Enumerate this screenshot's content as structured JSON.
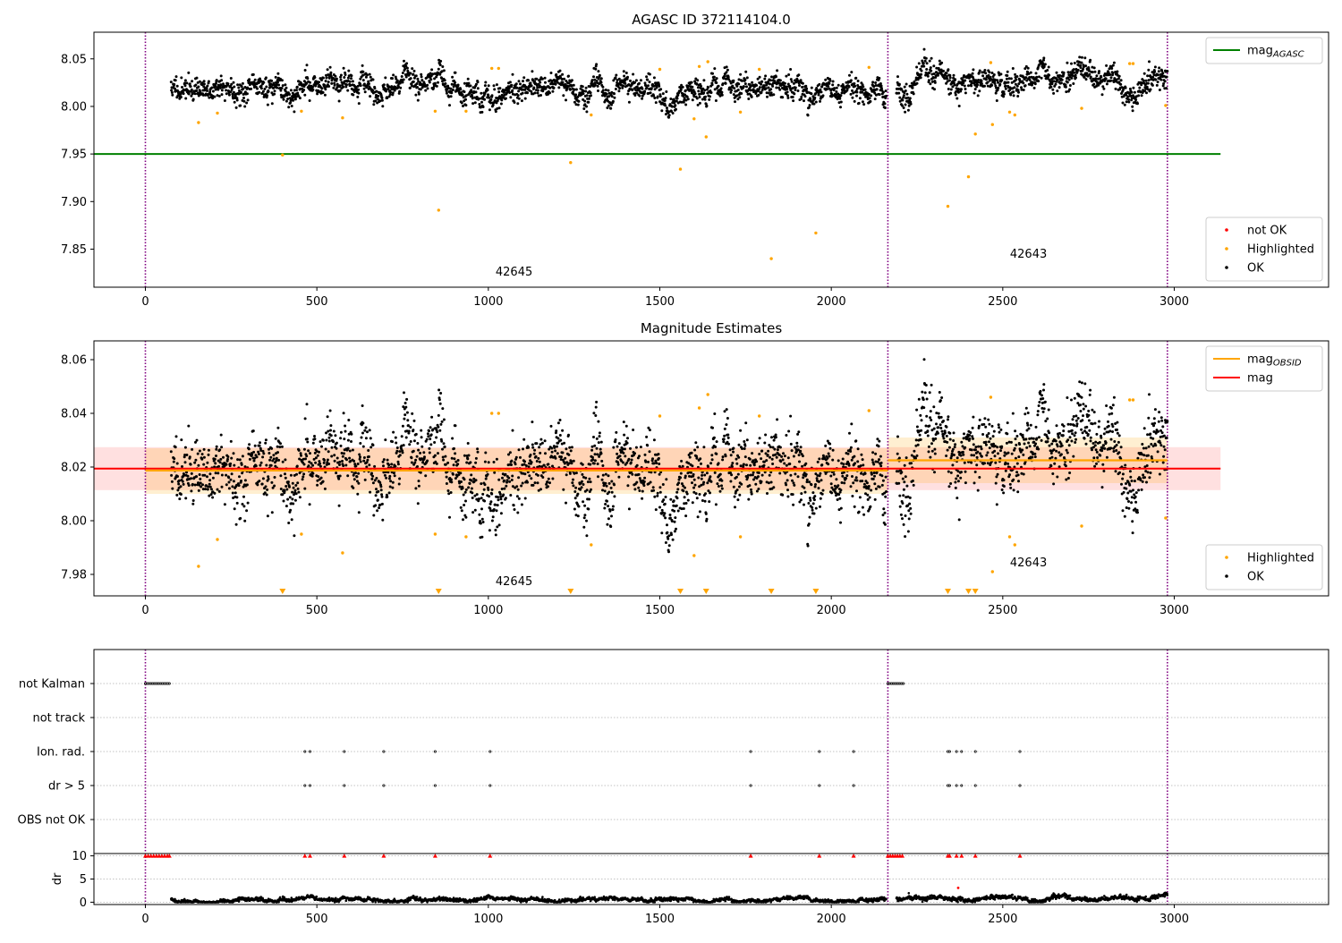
{
  "figure_title": "AGASC ID 372114104.0",
  "colors": {
    "ok": "#000000",
    "highlighted": "#ffa500",
    "not_ok": "#ff0000",
    "mag_agasc": "#008000",
    "mag_obsid": "#ffa500",
    "mag": "#ff0000",
    "obsid_separator": "#800080",
    "grid": "#b0b0b0"
  },
  "chart_data": [
    {
      "id": "agasc_panel",
      "type": "scatter",
      "title": "",
      "xlabel": "",
      "ylabel": "",
      "xlim": [
        -150,
        3450
      ],
      "ylim": [
        7.81,
        8.078
      ],
      "xticks": [
        0,
        500,
        1000,
        1500,
        2000,
        2500,
        3000
      ],
      "yticks": [
        7.85,
        7.9,
        7.95,
        8.0,
        8.05
      ],
      "ytick_labels": [
        "7.85",
        "7.90",
        "7.95",
        "8.00",
        "8.05"
      ],
      "grid": false,
      "legends": [
        {
          "placement": "upper-right",
          "entries": [
            {
              "kind": "line",
              "color": "#008000",
              "label": "mag",
              "sub": "AGASC"
            }
          ]
        },
        {
          "placement": "lower-right",
          "entries": [
            {
              "kind": "dot",
              "color": "#ff0000",
              "label": "not OK"
            },
            {
              "kind": "dot",
              "color": "#ffa500",
              "label": "Highlighted"
            },
            {
              "kind": "dot",
              "color": "#000000",
              "label": "OK"
            }
          ]
        }
      ],
      "obsid_boundaries": [
        0,
        2165,
        2980
      ],
      "obsid_labels": [
        {
          "text": "42645",
          "x": 1075,
          "y": 7.822
        },
        {
          "text": "42643",
          "x": 2575,
          "y": 7.841
        }
      ],
      "lines": [
        {
          "name": "mag_AGASC",
          "y": 7.95,
          "x": [
            -150,
            3135
          ],
          "color": "#008000"
        }
      ],
      "series": [
        {
          "name": "OK",
          "segments": [
            {
              "x": [
                75,
                2160
              ],
              "mean": 8.019,
              "sd": 0.0075,
              "seed": 11
            },
            {
              "x": [
                2190,
                2980
              ],
              "mean": 8.022,
              "sd": 0.0075,
              "seed": 23
            }
          ]
        },
        {
          "name": "Highlighted",
          "x": [
            155,
            210,
            400,
            455,
            575,
            845,
            855,
            935,
            1010,
            1030,
            1240,
            1300,
            1500,
            1560,
            1600,
            1615,
            1635,
            1640,
            1735,
            1790,
            1825,
            1955,
            2110,
            2340,
            2400,
            2420,
            2465,
            2470,
            2520,
            2535,
            2730,
            2870,
            2880,
            2975
          ],
          "y": [
            7.983,
            7.993,
            7.949,
            7.995,
            7.988,
            7.995,
            7.891,
            7.995,
            8.04,
            8.04,
            7.941,
            7.991,
            8.039,
            7.934,
            7.987,
            8.042,
            7.968,
            8.047,
            7.994,
            8.039,
            7.84,
            7.867,
            8.041,
            7.895,
            7.926,
            7.971,
            8.046,
            7.981,
            7.994,
            7.991,
            7.998,
            8.045,
            8.045,
            8.001
          ]
        }
      ]
    },
    {
      "id": "estimates_panel",
      "type": "scatter",
      "title": "Magnitude Estimates",
      "xlabel": "",
      "ylabel": "",
      "xlim": [
        -150,
        3450
      ],
      "ylim": [
        7.972,
        8.067
      ],
      "xticks": [
        0,
        500,
        1000,
        1500,
        2000,
        2500,
        3000
      ],
      "yticks": [
        7.98,
        8.0,
        8.02,
        8.04,
        8.06
      ],
      "ytick_labels": [
        "7.98",
        "8.00",
        "8.02",
        "8.04",
        "8.06"
      ],
      "grid": false,
      "legends": [
        {
          "placement": "upper-right",
          "entries": [
            {
              "kind": "line",
              "color": "#ffa500",
              "label": "mag",
              "sub": "OBSID"
            },
            {
              "kind": "line",
              "color": "#ff0000",
              "label": "mag",
              "sub": ""
            }
          ]
        },
        {
          "placement": "lower-right",
          "entries": [
            {
              "kind": "dot",
              "color": "#ffa500",
              "label": "Highlighted"
            },
            {
              "kind": "dot",
              "color": "#000000",
              "label": "OK"
            }
          ]
        }
      ],
      "obsid_boundaries": [
        0,
        2165,
        2980
      ],
      "obsid_labels": [
        {
          "text": "42645",
          "x": 1075,
          "y": 7.976
        },
        {
          "text": "42643",
          "x": 2575,
          "y": 7.983
        }
      ],
      "bands": [
        {
          "name": "mag",
          "color": "#ff0000",
          "opacity": 0.12,
          "x": [
            -150,
            3135
          ],
          "y": [
            8.0114,
            8.0274
          ]
        },
        {
          "name": "mag_OBSID 42645",
          "color": "#ffa500",
          "opacity": 0.18,
          "x": [
            0,
            2165
          ],
          "y": [
            8.01,
            8.027
          ]
        },
        {
          "name": "mag_OBSID 42643",
          "color": "#ffa500",
          "opacity": 0.18,
          "x": [
            2165,
            2980
          ],
          "y": [
            8.014,
            8.031
          ]
        }
      ],
      "lines": [
        {
          "name": "mag",
          "y": 8.0194,
          "x": [
            -150,
            3135
          ],
          "color": "#ff0000"
        },
        {
          "name": "mag_OBSID 42645",
          "y": 8.0187,
          "x": [
            0,
            2165
          ],
          "color": "#ffa500"
        },
        {
          "name": "mag_OBSID 42643",
          "y": 8.0225,
          "x": [
            2165,
            2980
          ],
          "color": "#ffa500"
        }
      ],
      "series": [
        {
          "name": "OK",
          "segments": [
            {
              "x": [
                75,
                2160
              ],
              "mean": 8.019,
              "sd": 0.0075,
              "seed": 11
            },
            {
              "x": [
                2190,
                2980
              ],
              "mean": 8.022,
              "sd": 0.0075,
              "seed": 23
            }
          ]
        },
        {
          "name": "Highlighted",
          "x": [
            155,
            210,
            455,
            575,
            845,
            935,
            1010,
            1030,
            1300,
            1500,
            1600,
            1615,
            1640,
            1735,
            1790,
            2110,
            2465,
            2470,
            2520,
            2535,
            2730,
            2870,
            2880,
            2975
          ],
          "y": [
            7.983,
            7.993,
            7.995,
            7.988,
            7.995,
            7.994,
            8.04,
            8.04,
            7.991,
            8.039,
            7.987,
            8.042,
            8.047,
            7.994,
            8.039,
            8.041,
            8.046,
            7.981,
            7.994,
            7.991,
            7.998,
            8.045,
            8.045,
            8.001
          ]
        },
        {
          "name": "Highlighted (below range)",
          "marker": "triangle-down",
          "x": [
            400,
            855,
            1240,
            1560,
            1635,
            1825,
            1955,
            2340,
            2400,
            2420
          ]
        }
      ]
    },
    {
      "id": "flags_panel",
      "type": "scatter",
      "title": "",
      "xlabel": "",
      "ylabel": "",
      "xlim": [
        -150,
        3450
      ],
      "categories": [
        "not Kalman",
        "not track",
        "Ion. rad.",
        "dr > 5",
        "OBS not OK"
      ],
      "grid": true,
      "obsid_boundaries": [
        0,
        2165,
        2980
      ],
      "series": [
        {
          "name": "not Kalman",
          "x_ranges": [
            [
              0,
              70
            ],
            [
              2165,
              2210
            ]
          ]
        },
        {
          "name": "not track",
          "x": []
        },
        {
          "name": "Ion. rad.",
          "x": [
            465,
            480,
            580,
            695,
            845,
            1005,
            1765,
            1965,
            2065,
            2340,
            2345,
            2365,
            2380,
            2420,
            2550
          ]
        },
        {
          "name": "dr > 5",
          "x": [
            465,
            480,
            580,
            695,
            845,
            1005,
            1765,
            1965,
            2065,
            2340,
            2345,
            2365,
            2380,
            2420,
            2550
          ]
        },
        {
          "name": "OBS not OK",
          "x": []
        }
      ]
    },
    {
      "id": "dr_panel",
      "type": "scatter",
      "title": "",
      "xlabel": "",
      "ylabel": "dr",
      "xlim": [
        -150,
        3450
      ],
      "ylim": [
        -0.5,
        10.5
      ],
      "xticks": [
        0,
        500,
        1000,
        1500,
        2000,
        2500,
        3000
      ],
      "yticks": [
        0,
        5,
        10
      ],
      "ytick_labels": [
        "0",
        "5",
        "10"
      ],
      "grid": true,
      "obsid_boundaries": [
        0,
        2165,
        2980
      ],
      "series": [
        {
          "name": "dr",
          "segments": [
            {
              "x": [
                75,
                2160
              ],
              "mean": 0.55,
              "sd": 0.25,
              "seed": 5
            },
            {
              "x": [
                2190,
                2980
              ],
              "mean": 0.7,
              "sd": 0.3,
              "seed": 9
            }
          ],
          "extra": [
            {
              "x": 2370,
              "y": 3.1
            }
          ]
        },
        {
          "name": "dr clipped",
          "marker": "triangle-up",
          "color": "#ff0000",
          "y": 10,
          "x": [
            0,
            8,
            16,
            24,
            32,
            40,
            48,
            56,
            64,
            70,
            465,
            480,
            580,
            695,
            845,
            1005,
            1765,
            1965,
            2065,
            2165,
            2172,
            2179,
            2186,
            2193,
            2200,
            2207,
            2340,
            2345,
            2365,
            2380,
            2420,
            2550
          ]
        }
      ]
    }
  ]
}
